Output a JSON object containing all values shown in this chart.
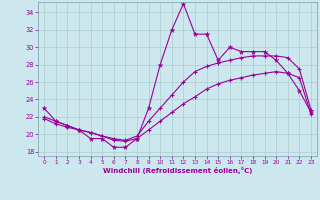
{
  "xlabel": "Windchill (Refroidissement éolien,°C)",
  "background_color": "#cce8ee",
  "line_color": "#990099",
  "grid_color": "#aacccc",
  "xlim": [
    -0.5,
    23.5
  ],
  "ylim": [
    17.5,
    35.2
  ],
  "yticks": [
    18,
    20,
    22,
    24,
    26,
    28,
    30,
    32,
    34
  ],
  "xticks": [
    0,
    1,
    2,
    3,
    4,
    5,
    6,
    7,
    8,
    9,
    10,
    11,
    12,
    13,
    14,
    15,
    16,
    17,
    18,
    19,
    20,
    21,
    22,
    23
  ],
  "series1_x": [
    0,
    1,
    2,
    3,
    4,
    5,
    6,
    7,
    8,
    9,
    10,
    11,
    12,
    13,
    14,
    15,
    16,
    17,
    18,
    19,
    20,
    21,
    22,
    23
  ],
  "series1_y": [
    23.0,
    21.5,
    21.0,
    20.5,
    19.5,
    19.5,
    18.5,
    18.5,
    19.5,
    23.0,
    28.0,
    32.0,
    35.0,
    31.5,
    31.5,
    28.5,
    30.0,
    29.5,
    29.5,
    29.5,
    28.5,
    27.0,
    25.0,
    22.5
  ],
  "series2_x": [
    0,
    1,
    2,
    3,
    4,
    5,
    6,
    7,
    8,
    9,
    10,
    11,
    12,
    13,
    14,
    15,
    16,
    17,
    18,
    19,
    20,
    21,
    22,
    23
  ],
  "series2_y": [
    22.0,
    21.5,
    21.0,
    20.5,
    20.2,
    19.8,
    19.5,
    19.3,
    19.8,
    21.5,
    23.0,
    24.5,
    26.0,
    27.2,
    27.8,
    28.2,
    28.5,
    28.8,
    29.0,
    29.0,
    29.0,
    28.8,
    27.5,
    22.8
  ],
  "series3_x": [
    0,
    1,
    2,
    3,
    4,
    5,
    6,
    7,
    8,
    9,
    10,
    11,
    12,
    13,
    14,
    15,
    16,
    17,
    18,
    19,
    20,
    21,
    22,
    23
  ],
  "series3_y": [
    21.8,
    21.2,
    20.8,
    20.5,
    20.2,
    19.8,
    19.3,
    19.2,
    19.5,
    20.5,
    21.5,
    22.5,
    23.5,
    24.3,
    25.2,
    25.8,
    26.2,
    26.5,
    26.8,
    27.0,
    27.2,
    27.0,
    26.5,
    22.3
  ]
}
